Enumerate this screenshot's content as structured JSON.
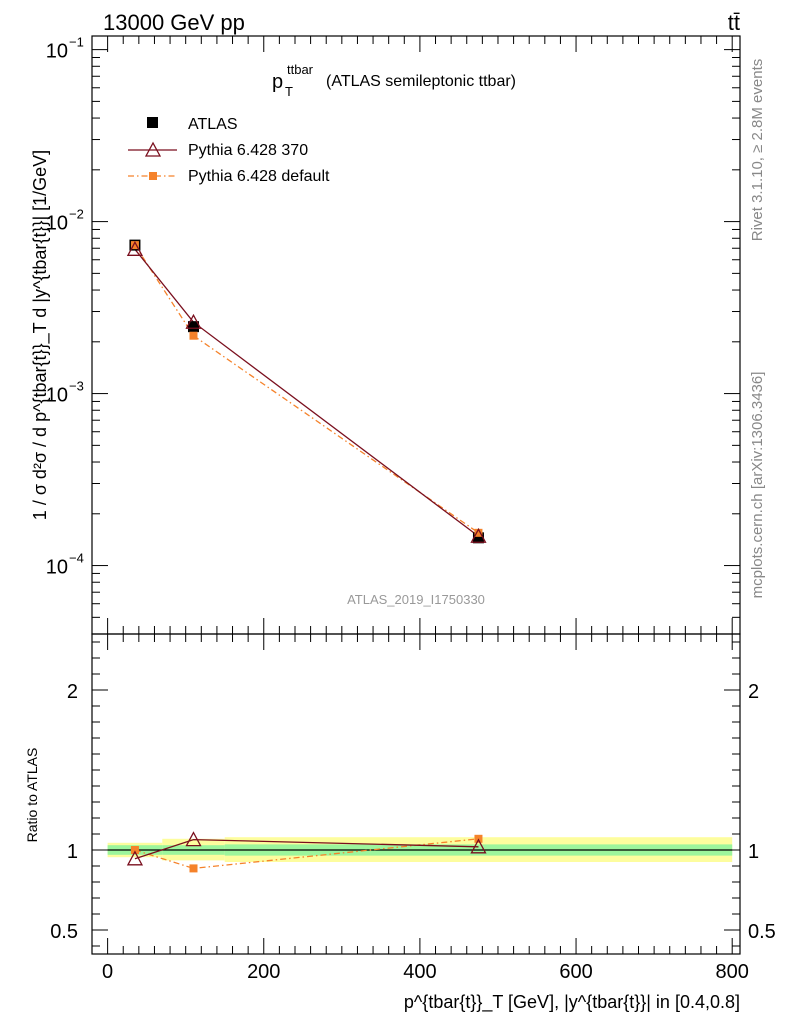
{
  "header": {
    "energy_label": "13000 GeV pp",
    "process_label": "tt̄"
  },
  "side_labels": {
    "rivet": "Rivet 3.1.10, ≥ 2.8M events",
    "mcplots": "mcplots.cern.ch [arXiv:1306.3436]"
  },
  "watermark": "ATLAS_2019_I1750330",
  "title": {
    "main": "p",
    "sup": "ttbar",
    "sub": "T",
    "rest": "(ATLAS semileptonic ttbar)"
  },
  "y_axis_label": "1 / σ d²σ / d p^{tbar{t}}_T d |y^{tbar{t}}| [1/GeV]",
  "ratio_axis_label": "Ratio to ATLAS",
  "x_axis_label": "p^{tbar{t}}_T [GeV], |y^{tbar{t}}| in [0.4,0.8]",
  "colors": {
    "data": "#000000",
    "pythia370": "#7a0f1e",
    "pythia_default": "#f5822a",
    "band_inner": "#9cf59c",
    "band_outer": "#fdfd9e"
  },
  "chart_data": [
    {
      "type": "line",
      "panel": "main",
      "yscale": "log",
      "xlim": [
        -20,
        810
      ],
      "ylim": [
        4e-05,
        0.12
      ],
      "y_ticks": [
        {
          "value": 0.1,
          "label": "10",
          "exp": "−1"
        },
        {
          "value": 0.01,
          "label": "10",
          "exp": "−2"
        },
        {
          "value": 0.001,
          "label": "10",
          "exp": "−3"
        },
        {
          "value": 0.0001,
          "label": "10",
          "exp": "−4"
        }
      ],
      "series": [
        {
          "name": "ATLAS",
          "x": [
            35,
            110,
            475
          ],
          "values": [
            0.0073,
            0.00245,
            0.000145
          ],
          "marker": "square"
        },
        {
          "name": "Pythia 6.428 370",
          "x": [
            35,
            110,
            475
          ],
          "values": [
            0.0069,
            0.0026,
            0.000148
          ],
          "marker": "triangle"
        },
        {
          "name": "Pythia 6.428 default",
          "x": [
            35,
            110,
            475
          ],
          "values": [
            0.0073,
            0.00217,
            0.000155
          ],
          "marker": "square-small"
        }
      ]
    },
    {
      "type": "line",
      "panel": "ratio",
      "xlim": [
        -20,
        810
      ],
      "ylim": [
        0.35,
        2.35
      ],
      "x_ticks": [
        0,
        200,
        400,
        600,
        800
      ],
      "y_ticks": [
        0.5,
        1,
        2
      ],
      "y_tick_labels": [
        "0.5",
        "1",
        "2"
      ],
      "bands": [
        {
          "x0": 0,
          "x1": 70,
          "inner": [
            0.97,
            1.03
          ],
          "outer": [
            0.955,
            1.045
          ]
        },
        {
          "x0": 70,
          "x1": 150,
          "inner": [
            0.97,
            1.03
          ],
          "outer": [
            0.935,
            1.07
          ]
        },
        {
          "x0": 150,
          "x1": 800,
          "inner": [
            0.965,
            1.035
          ],
          "outer": [
            0.925,
            1.08
          ]
        }
      ],
      "series": [
        {
          "name": "Pythia 6.428 370",
          "x": [
            35,
            110,
            475
          ],
          "values": [
            0.945,
            1.065,
            1.02
          ]
        },
        {
          "name": "Pythia 6.428 default",
          "x": [
            35,
            110,
            475
          ],
          "values": [
            1.0,
            0.885,
            1.07
          ]
        }
      ]
    }
  ]
}
